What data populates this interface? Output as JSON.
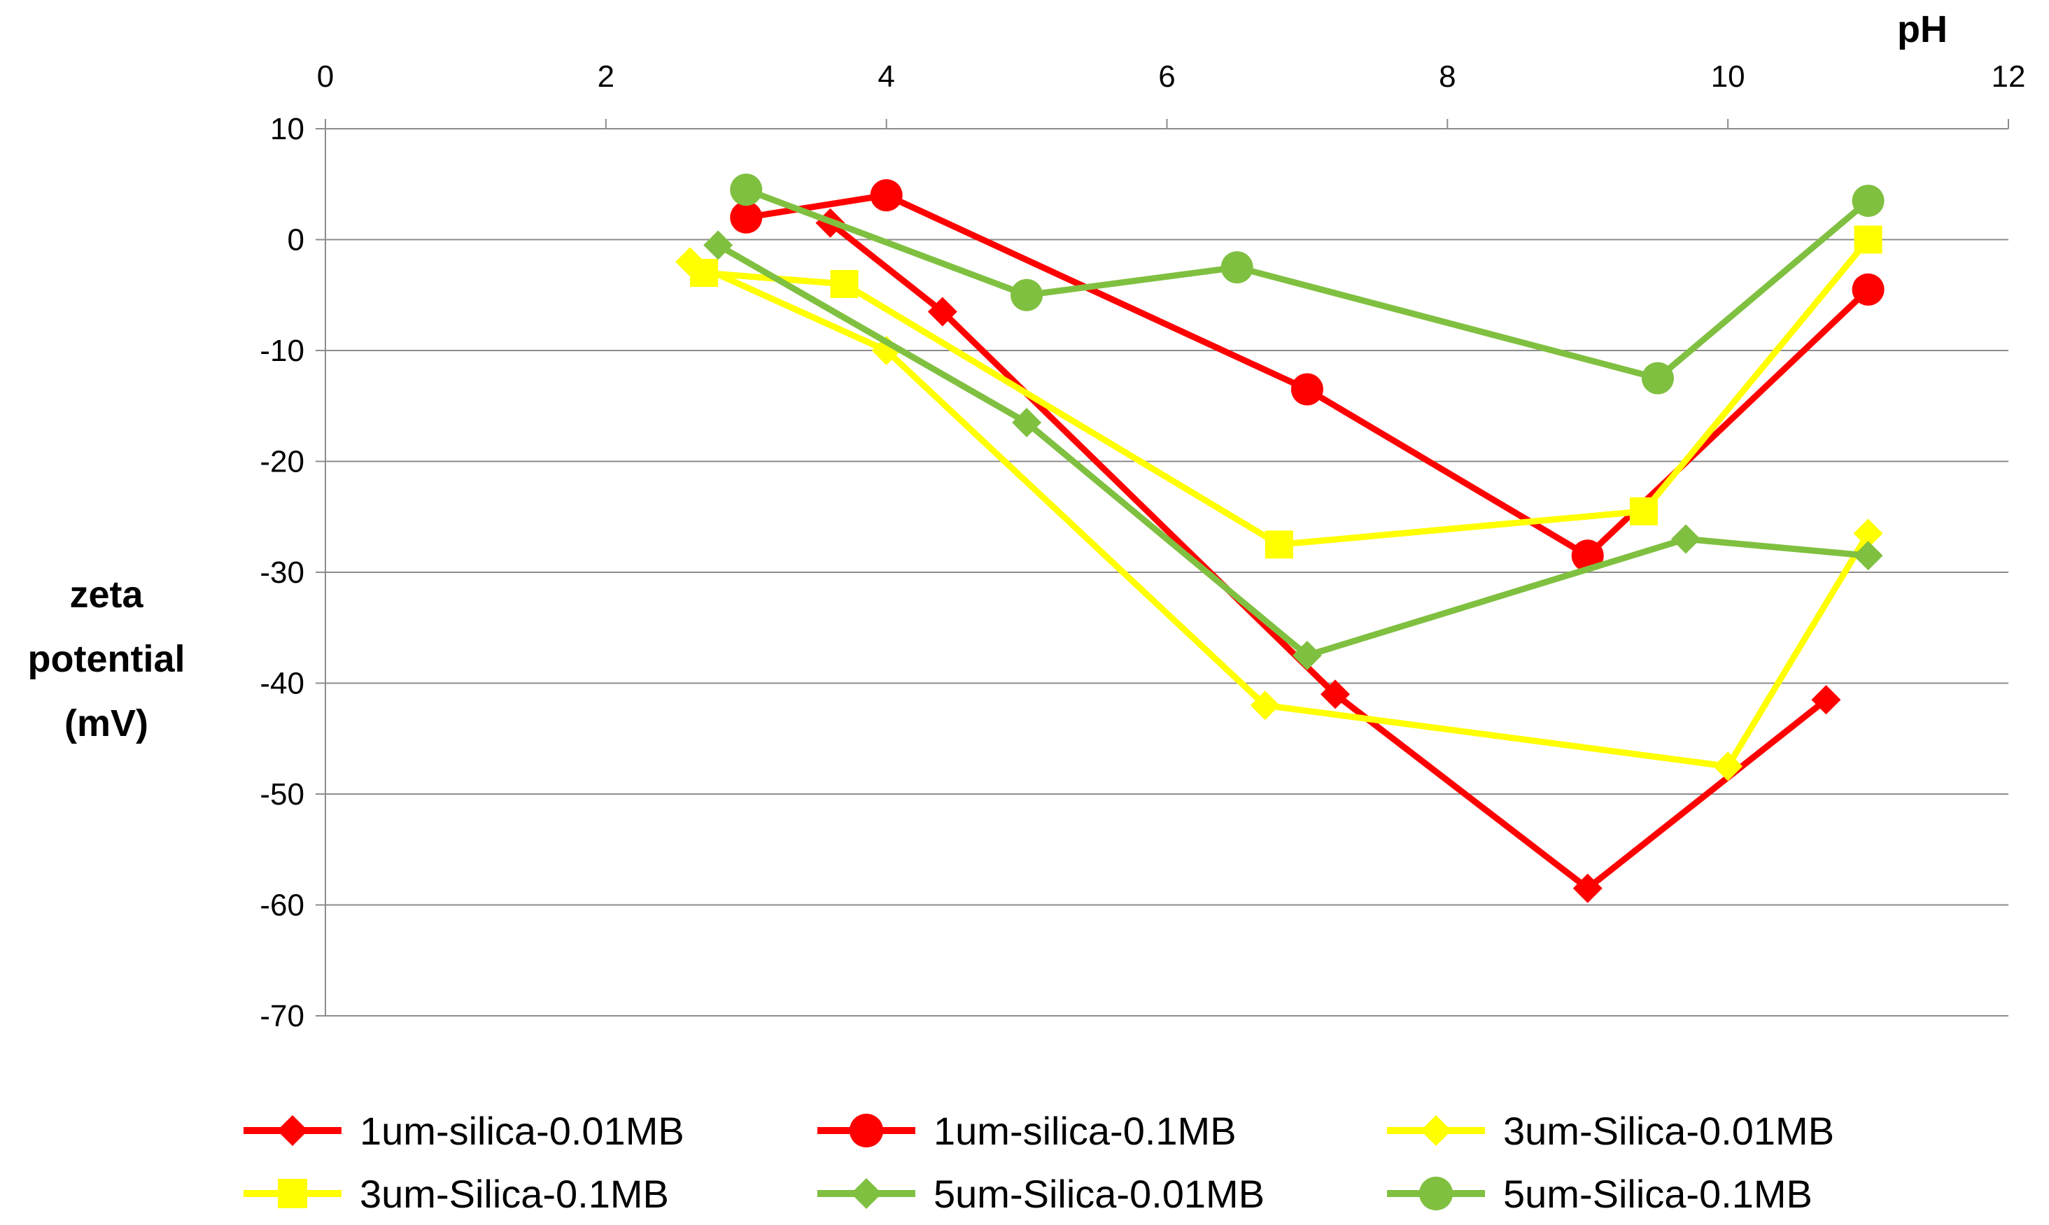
{
  "chart_data": {
    "type": "line",
    "title": "",
    "xlabel": "pH",
    "ylabel_lines": [
      "zeta",
      "potential",
      "(mV)"
    ],
    "xlim": [
      0,
      12
    ],
    "ylim": [
      -70,
      10
    ],
    "x_ticks": [
      0,
      2,
      4,
      6,
      8,
      10,
      12
    ],
    "y_ticks": [
      10,
      0,
      -10,
      -20,
      -30,
      -40,
      -50,
      -60,
      -70
    ],
    "x_tick_labels": [
      "0",
      "2",
      "4",
      "6",
      "8",
      "10",
      "12"
    ],
    "y_tick_labels": [
      "10",
      "0",
      "-10",
      "-20",
      "-30",
      "-40",
      "-50",
      "-60",
      "-70"
    ],
    "x_axis_position": "top",
    "grid": "horizontal",
    "legend_position": "bottom",
    "series": [
      {
        "name": "1um-silica-0.01MB",
        "color": "#ff0000",
        "marker": "diamond",
        "x": [
          3.6,
          4.4,
          7.2,
          9.0,
          10.7
        ],
        "y": [
          1.5,
          -6.5,
          -41.0,
          -58.5,
          -41.5
        ]
      },
      {
        "name": "1um-silica-0.1MB",
        "color": "#ff0000",
        "marker": "circle",
        "x": [
          3.0,
          4.0,
          7.0,
          9.0,
          11.0
        ],
        "y": [
          2.0,
          4.0,
          -13.5,
          -28.5,
          -4.5
        ]
      },
      {
        "name": "3um-Silica-0.01MB",
        "color": "#ffff00",
        "marker": "diamond",
        "x": [
          2.6,
          4.0,
          6.7,
          10.0,
          11.0
        ],
        "y": [
          -2.0,
          -10.0,
          -42.0,
          -47.5,
          -26.5
        ]
      },
      {
        "name": "3um-Silica-0.1MB",
        "color": "#ffff00",
        "marker": "square",
        "x": [
          2.7,
          3.7,
          6.8,
          9.4,
          11.0
        ],
        "y": [
          -3.0,
          -4.0,
          -27.5,
          -24.5,
          0.0
        ]
      },
      {
        "name": "5um-Silica-0.01MB",
        "color": "#80c040",
        "marker": "diamond",
        "x": [
          2.8,
          5.0,
          7.0,
          9.7,
          11.0
        ],
        "y": [
          -0.5,
          -16.5,
          -37.5,
          -27.0,
          -28.5
        ]
      },
      {
        "name": "5um-Silica-0.1MB",
        "color": "#80c040",
        "marker": "circle",
        "x": [
          3.0,
          5.0,
          6.5,
          9.5,
          11.0
        ],
        "y": [
          4.5,
          -5.0,
          -2.5,
          -12.5,
          3.5
        ]
      }
    ]
  }
}
